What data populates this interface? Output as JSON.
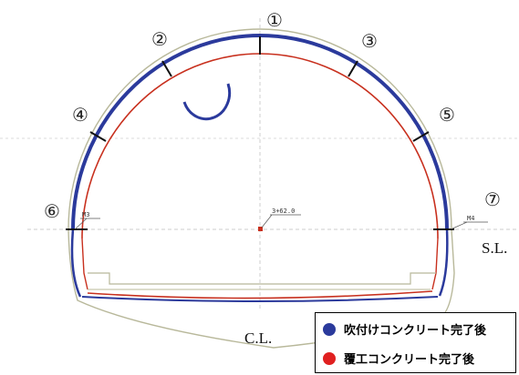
{
  "sections": [
    {
      "label": "①"
    },
    {
      "label": "②"
    },
    {
      "label": "③"
    },
    {
      "label": "④"
    },
    {
      "label": "⑤"
    },
    {
      "label": "⑥"
    },
    {
      "label": "⑦"
    }
  ],
  "markers": {
    "left": "M3",
    "right": "M4",
    "center": "3+62.0"
  },
  "axes": {
    "springline": "S.L.",
    "centerline": "C.L."
  },
  "legend": {
    "items": [
      {
        "label": "吹付けコンクリート完了後",
        "color": "#2b3a9c"
      },
      {
        "label": "覆工コンクリート完了後",
        "color": "#e02020"
      }
    ]
  },
  "colors": {
    "shotcrete": "#2b3a9c",
    "lining": "#c8301e",
    "design": "#b8b89a",
    "guide": "#c8c8c8"
  }
}
